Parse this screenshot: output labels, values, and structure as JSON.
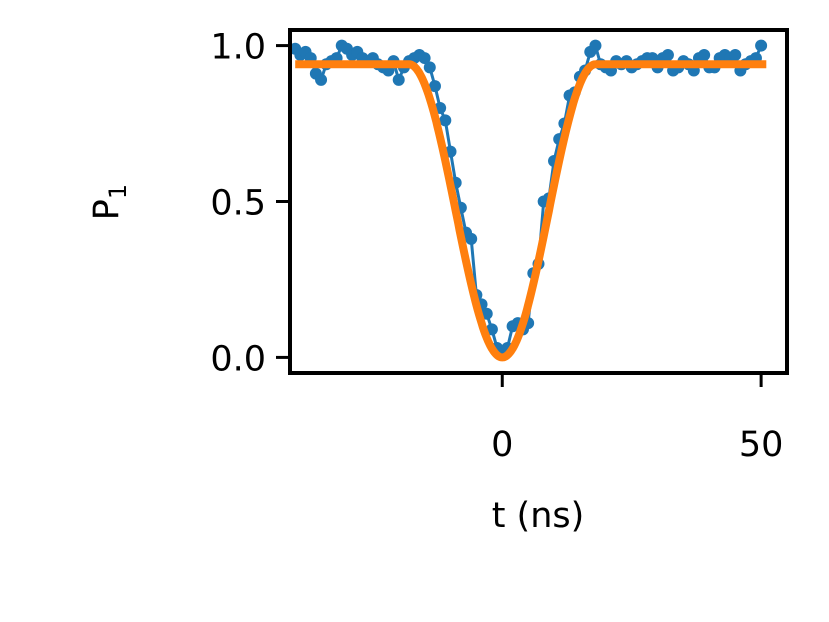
{
  "chart_data": {
    "type": "scatter",
    "title": "",
    "xlabel": "t (ns)",
    "ylabel_main": "P",
    "ylabel_sub": "1",
    "xlim": [
      -41,
      55
    ],
    "ylim": [
      -0.05,
      1.05
    ],
    "xticks": [
      {
        "value": 0,
        "label": "0"
      },
      {
        "value": 50,
        "label": "50"
      }
    ],
    "yticks": [
      {
        "value": 0.0,
        "label": "0.0"
      },
      {
        "value": 0.5,
        "label": "0.5"
      },
      {
        "value": 1.0,
        "label": "1.0"
      }
    ],
    "legend": "none",
    "grid": false,
    "series": [
      {
        "kind": "measured",
        "color": "#1f77b4",
        "points": [
          [
            -40,
            0.99
          ],
          [
            -39,
            0.97
          ],
          [
            -38,
            0.98
          ],
          [
            -37,
            0.96
          ],
          [
            -36,
            0.91
          ],
          [
            -35,
            0.89
          ],
          [
            -34,
            0.94
          ],
          [
            -33,
            0.95
          ],
          [
            -32,
            0.96
          ],
          [
            -31,
            1.0
          ],
          [
            -30,
            0.99
          ],
          [
            -29,
            0.97
          ],
          [
            -28,
            0.98
          ],
          [
            -27,
            0.96
          ],
          [
            -26,
            0.95
          ],
          [
            -25,
            0.96
          ],
          [
            -24,
            0.94
          ],
          [
            -23,
            0.93
          ],
          [
            -22,
            0.92
          ],
          [
            -21,
            0.95
          ],
          [
            -20,
            0.89
          ],
          [
            -19,
            0.93
          ],
          [
            -18,
            0.95
          ],
          [
            -17,
            0.96
          ],
          [
            -16,
            0.97
          ],
          [
            -15,
            0.96
          ],
          [
            -14,
            0.93
          ],
          [
            -13,
            0.87
          ],
          [
            -12,
            0.8
          ],
          [
            -11,
            0.76
          ],
          [
            -10,
            0.66
          ],
          [
            -9,
            0.56
          ],
          [
            -8,
            0.48
          ],
          [
            -7,
            0.4
          ],
          [
            -6,
            0.38
          ],
          [
            -5,
            0.2
          ],
          [
            -4,
            0.17
          ],
          [
            -3,
            0.14
          ],
          [
            -2,
            0.09
          ],
          [
            -1,
            0.03
          ],
          [
            0,
            0.01
          ],
          [
            1,
            0.03
          ],
          [
            2,
            0.1
          ],
          [
            3,
            0.11
          ],
          [
            4,
            0.09
          ],
          [
            5,
            0.11
          ],
          [
            6,
            0.27
          ],
          [
            7,
            0.3
          ],
          [
            8,
            0.5
          ],
          [
            9,
            0.51
          ],
          [
            10,
            0.63
          ],
          [
            11,
            0.7
          ],
          [
            12,
            0.75
          ],
          [
            13,
            0.84
          ],
          [
            14,
            0.85
          ],
          [
            15,
            0.9
          ],
          [
            16,
            0.92
          ],
          [
            17,
            0.98
          ],
          [
            18,
            1.0
          ],
          [
            19,
            0.94
          ],
          [
            20,
            0.93
          ],
          [
            21,
            0.92
          ],
          [
            22,
            0.95
          ],
          [
            23,
            0.94
          ],
          [
            24,
            0.95
          ],
          [
            25,
            0.93
          ],
          [
            26,
            0.94
          ],
          [
            27,
            0.95
          ],
          [
            28,
            0.96
          ],
          [
            29,
            0.96
          ],
          [
            30,
            0.93
          ],
          [
            31,
            0.96
          ],
          [
            32,
            0.97
          ],
          [
            33,
            0.92
          ],
          [
            34,
            0.93
          ],
          [
            35,
            0.95
          ],
          [
            36,
            0.94
          ],
          [
            37,
            0.92
          ],
          [
            38,
            0.96
          ],
          [
            39,
            0.97
          ],
          [
            40,
            0.93
          ],
          [
            41,
            0.93
          ],
          [
            42,
            0.96
          ],
          [
            43,
            0.97
          ],
          [
            44,
            0.96
          ],
          [
            45,
            0.97
          ],
          [
            46,
            0.92
          ],
          [
            47,
            0.94
          ],
          [
            48,
            0.95
          ],
          [
            49,
            0.96
          ],
          [
            50,
            1.0
          ]
        ]
      },
      {
        "kind": "fit",
        "color": "#ff7f0e",
        "function": "1 - A*cos^2(pi*t/(2*T)) for |t|<T else 1 - A",
        "params": {
          "baseline": 0.94,
          "T": 18
        },
        "x_range": [
          -40,
          51
        ]
      }
    ]
  }
}
